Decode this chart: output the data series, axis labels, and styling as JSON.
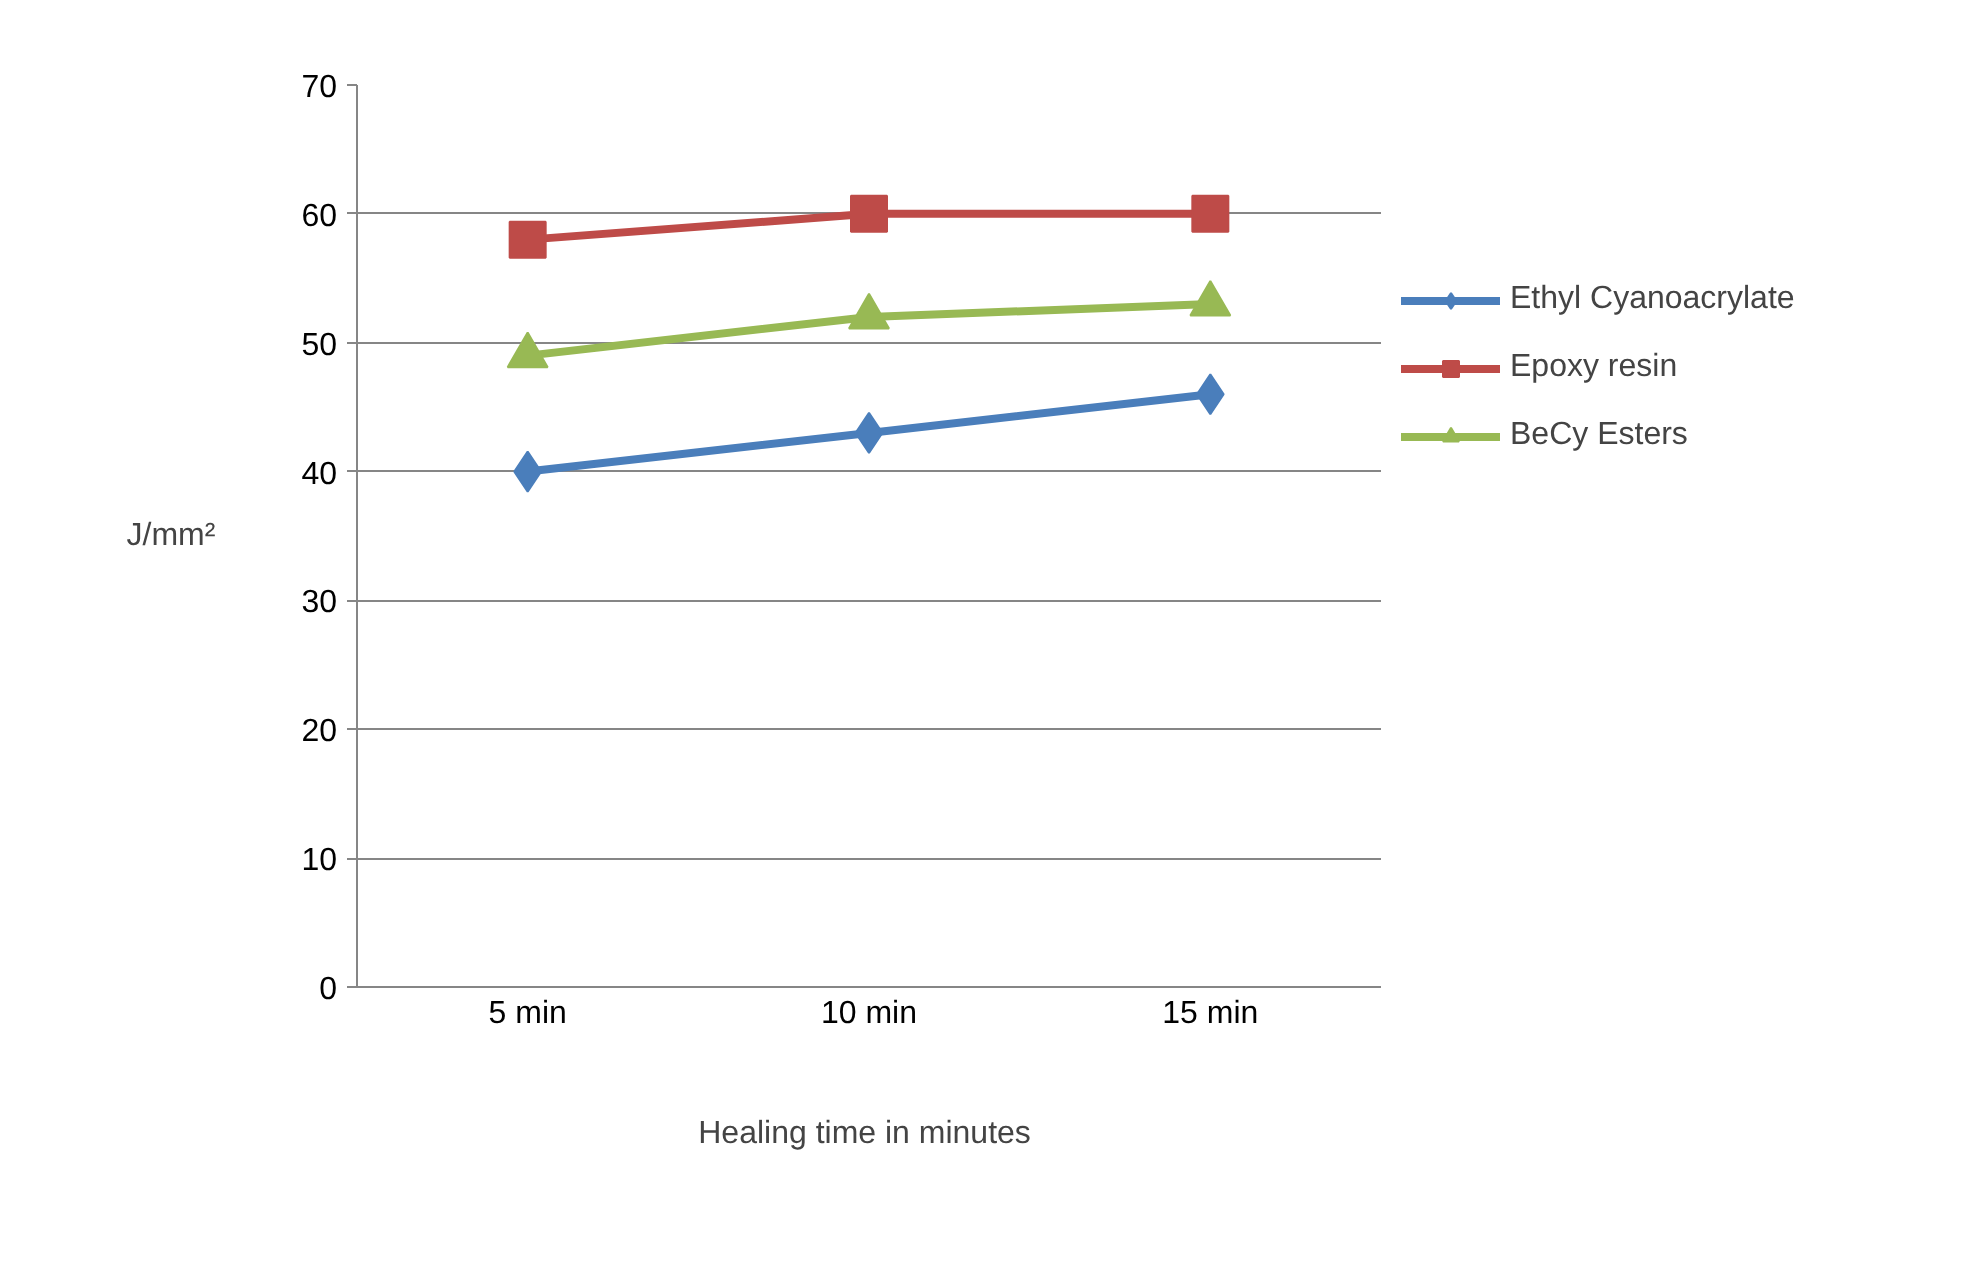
{
  "chart_data": {
    "type": "line",
    "xlabel": "Healing  time in minutes",
    "ylabel": "J/mm²",
    "categories": [
      "5 min",
      "10 min",
      "15 min"
    ],
    "series": [
      {
        "name": "Ethyl Cyanoacrylate",
        "color": "#4a7ebb",
        "marker": "diamond",
        "values": [
          40,
          43,
          46
        ]
      },
      {
        "name": "Epoxy resin",
        "color": "#be4b48",
        "marker": "square",
        "values": [
          58,
          60,
          60
        ]
      },
      {
        "name": "BeCy Esters",
        "color": "#98b954",
        "marker": "triangle",
        "values": [
          49,
          52,
          53
        ]
      }
    ],
    "ylim": [
      0,
      70
    ],
    "yticks": [
      0,
      10,
      20,
      30,
      40,
      50,
      60,
      70
    ],
    "grid": "y",
    "legend": "right",
    "line_style": "solid"
  }
}
